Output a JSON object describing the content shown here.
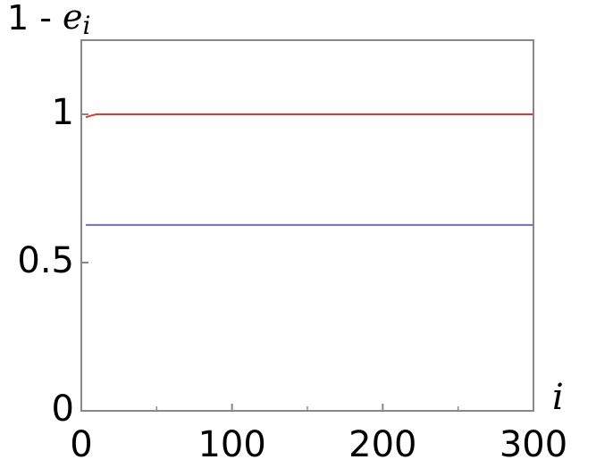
{
  "chart_data": {
    "type": "line",
    "ylabel": {
      "prefix": "1 - ",
      "symbol": "e",
      "subscript": "i"
    },
    "xlabel": "i",
    "x": [
      3,
      6,
      10,
      300
    ],
    "series": [
      {
        "color": "#e0392f",
        "values": [
          0.99,
          0.995,
          1,
          1
        ]
      },
      {
        "color": "#6a6fd0",
        "values": [
          0.627,
          0.627,
          0.627,
          0.627
        ]
      }
    ],
    "xlim": [
      0,
      300
    ],
    "xticks": [
      0,
      100,
      200,
      300
    ],
    "xminorticks": [
      50,
      150,
      250
    ],
    "ylim": [
      0,
      1.25
    ],
    "yticks": [
      0,
      {
        "value": 0.5,
        "label": "0.5"
      },
      1
    ]
  }
}
